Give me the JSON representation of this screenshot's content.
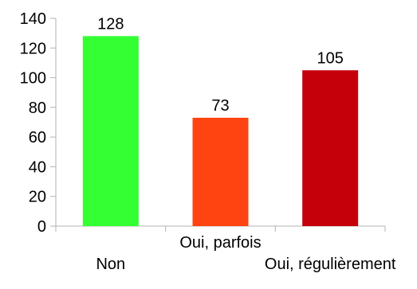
{
  "chart_data": {
    "type": "bar",
    "title": "",
    "xlabel": "",
    "ylabel": "",
    "categories": [
      "Non",
      "Oui, parfois",
      "Oui, régulièrement"
    ],
    "values": [
      128,
      73,
      105
    ],
    "data_labels": [
      "128",
      "73",
      "105"
    ],
    "colors": [
      "#33ff33",
      "#ff4411",
      "#c5000b"
    ],
    "ylim": [
      0,
      140
    ],
    "yticks": [
      0,
      20,
      40,
      60,
      80,
      100,
      120,
      140
    ],
    "ytick_labels": [
      "0",
      "20",
      "40",
      "60",
      "80",
      "100",
      "120",
      "140"
    ],
    "grid": false,
    "legend": "none"
  }
}
